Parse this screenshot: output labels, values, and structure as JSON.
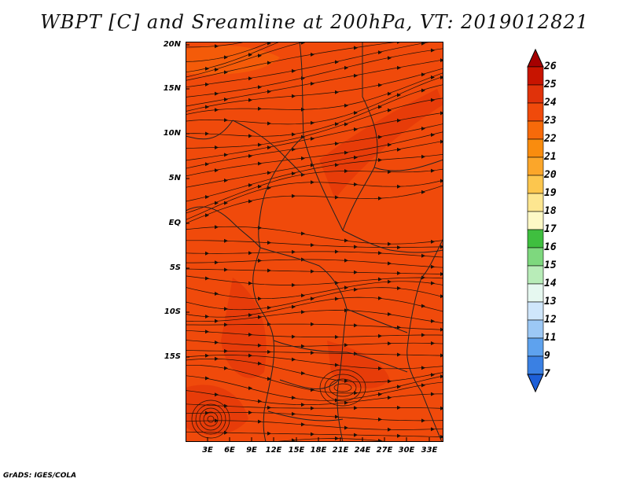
{
  "title": "WBPT [C] and Sreamline at 200hPa, VT: 2019012821",
  "credit": "GrADS: IGES/COLA",
  "map": {
    "lat_labels": [
      "20N",
      "15N",
      "10N",
      "5N",
      "EQ",
      "5S",
      "10S",
      "15S"
    ],
    "lon_labels": [
      "3E",
      "6E",
      "9E",
      "12E",
      "15E",
      "18E",
      "21E",
      "24E",
      "27E",
      "30E",
      "33E"
    ],
    "fill_color": "#f04a0b",
    "streamline_color": "#1a1008",
    "boundary_color": "#222222"
  },
  "colorbar": {
    "labels": [
      "26",
      "25",
      "24",
      "23",
      "22",
      "21",
      "20",
      "19",
      "18",
      "17",
      "16",
      "15",
      "14",
      "13",
      "12",
      "11",
      "9",
      "7"
    ],
    "colors": [
      "#a50000",
      "#c81400",
      "#e0320a",
      "#f04a0b",
      "#f76a0a",
      "#f98c0e",
      "#fba62a",
      "#fcc64e",
      "#fde690",
      "#fef9c6",
      "#3fbf3f",
      "#7ed87e",
      "#b8ecb8",
      "#e6f8f0",
      "#cfe6fb",
      "#9cc8f5",
      "#5ea2ee",
      "#3a80e3",
      "#1d5fd8"
    ]
  }
}
